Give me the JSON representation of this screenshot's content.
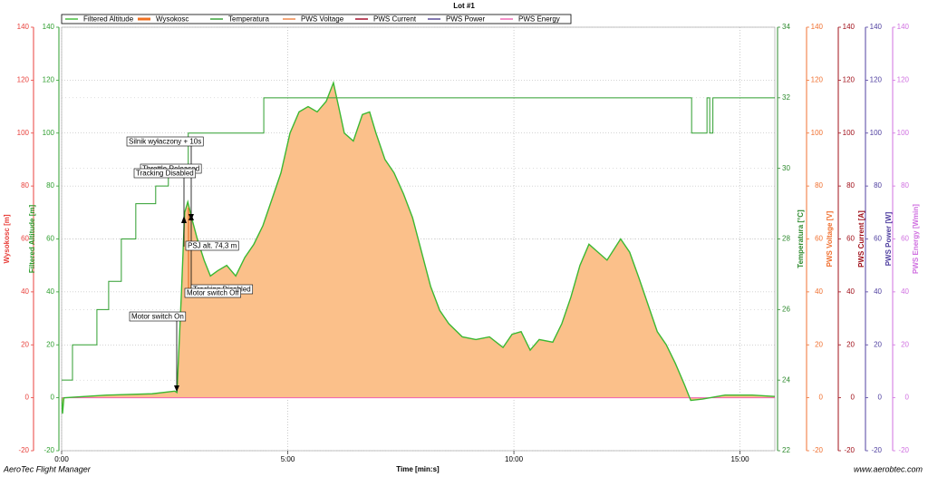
{
  "title": "Lot #1",
  "footer_left": "AeroTec Flight Manager",
  "footer_right": "www.aerobtec.com",
  "chart_data": {
    "type": "line",
    "xlabel": "Time [min:s]",
    "xlim": [
      0,
      15.77
    ],
    "xticks": [
      {
        "value": 0,
        "label": "0:00"
      },
      {
        "value": 5,
        "label": "5:00"
      },
      {
        "value": 10,
        "label": "10:00"
      },
      {
        "value": 15,
        "label": "15:00"
      }
    ],
    "ylim": [
      -20,
      140
    ],
    "yticks": [
      -20,
      0,
      20,
      40,
      60,
      80,
      100,
      120,
      140
    ],
    "y2lim": [
      22,
      34
    ],
    "y2ticks": [
      22,
      24,
      26,
      28,
      30,
      32,
      34
    ],
    "grid": true,
    "axes": [
      {
        "label": "Wysokosc [m]",
        "color": "#e8413c",
        "side": "left",
        "scale": "y"
      },
      {
        "label": "Filtered Altitude [m]",
        "color": "#2e9e2e",
        "side": "left",
        "scale": "y"
      },
      {
        "label": "Temperatura [°C]",
        "color": "#2e8a2e",
        "side": "right",
        "scale": "y2"
      },
      {
        "label": "PWS Voltage [V]",
        "color": "#f07030",
        "side": "right",
        "scale": "y"
      },
      {
        "label": "PWS Current [A]",
        "color": "#a0101a",
        "side": "right",
        "scale": "y"
      },
      {
        "label": "PWS Power [W]",
        "color": "#5040a0",
        "side": "right",
        "scale": "y"
      },
      {
        "label": "PWS Energy [Wmin]",
        "color": "#d070e0",
        "side": "right",
        "scale": "y"
      }
    ],
    "x": [
      0,
      0.02,
      0.05,
      1.0,
      2.0,
      2.5,
      2.55,
      2.65,
      2.72,
      2.79,
      2.89,
      3.0,
      3.15,
      3.29,
      3.45,
      3.65,
      3.85,
      4.05,
      4.25,
      4.45,
      4.65,
      4.85,
      5.05,
      5.25,
      5.45,
      5.65,
      5.85,
      6.01,
      6.15,
      6.25,
      6.45,
      6.65,
      6.81,
      6.95,
      7.15,
      7.35,
      7.56,
      7.76,
      7.96,
      8.16,
      8.36,
      8.56,
      8.86,
      9.16,
      9.46,
      9.76,
      9.96,
      10.16,
      10.36,
      10.56,
      10.86,
      11.06,
      11.26,
      11.46,
      11.66,
      11.86,
      12.06,
      12.36,
      12.56,
      12.77,
      12.97,
      13.17,
      13.37,
      13.57,
      13.77,
      13.91,
      14.17,
      14.67,
      15.27,
      15.77
    ],
    "series": [
      {
        "name": "Filtered Altitude",
        "color": "#3cb832",
        "values": [
          0,
          -6,
          0,
          1,
          1.5,
          2.5,
          2,
          40,
          70,
          74,
          67,
          60,
          52,
          46,
          48,
          50,
          46,
          53,
          58,
          65,
          75,
          85,
          100,
          108,
          110,
          108,
          112,
          119,
          108,
          100,
          97,
          107,
          108,
          100,
          90,
          85,
          77,
          68,
          55,
          42,
          33,
          28,
          23,
          22,
          23,
          19,
          24,
          25,
          18,
          22,
          21,
          28,
          38,
          50,
          58,
          55,
          52,
          60,
          55,
          45,
          35,
          25,
          20,
          13,
          5,
          -1,
          -0.5,
          1,
          1,
          0.5
        ]
      },
      {
        "name": "Wysokosc",
        "color": "#f07020",
        "fill": "#fbc08a",
        "values": [
          0,
          -6,
          0,
          1,
          1.5,
          2.5,
          2,
          40,
          70,
          74,
          67,
          60,
          52,
          46,
          48,
          50,
          46,
          53,
          58,
          65,
          75,
          85,
          100,
          108,
          110,
          108,
          112,
          119,
          108,
          100,
          97,
          107,
          108,
          100,
          90,
          85,
          77,
          68,
          55,
          42,
          33,
          28,
          23,
          22,
          23,
          19,
          24,
          25,
          18,
          22,
          21,
          28,
          38,
          50,
          58,
          55,
          52,
          60,
          55,
          45,
          35,
          25,
          20,
          13,
          5,
          -1,
          -0.5,
          1,
          1,
          0.5
        ]
      },
      {
        "name": "Temperatura",
        "color": "#2e9e2e",
        "axis": "y2",
        "step": true,
        "x": [
          0,
          0.24,
          0.78,
          1.04,
          1.32,
          1.64,
          2.08,
          2.36,
          2.8,
          4.47,
          13.93,
          14.27,
          14.33,
          14.4
        ],
        "values": [
          24,
          25,
          26,
          26.8,
          28,
          29,
          29.5,
          30,
          31,
          32,
          31,
          32,
          31,
          32
        ]
      },
      {
        "name": "PWS Voltage",
        "color": "#f08040"
      },
      {
        "name": "PWS Current",
        "color": "#a00020"
      },
      {
        "name": "PWS Power",
        "color": "#504090"
      },
      {
        "name": "PWS Energy",
        "color": "#f060b0",
        "x": [
          0,
          15.77
        ],
        "values": [
          0,
          0
        ]
      }
    ],
    "annotations": [
      "Silnik wyłaczony + 10s",
      "Throttle Released",
      "Tracking Disabled",
      "PSJ alt. 74,3 m",
      "Tracking Disabled",
      "Motor switch Off",
      "Motor switch On"
    ]
  }
}
